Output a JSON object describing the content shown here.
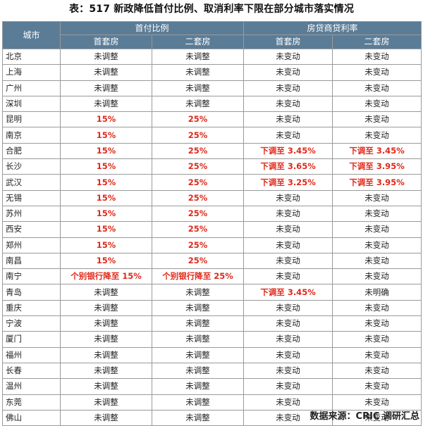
{
  "title": "表：517 新政降低首付比例、取消利率下限在部分城市落实情况",
  "header": {
    "city": "城市",
    "group1": "首付比例",
    "group2": "房贷商贷利率",
    "sub": [
      "首套房",
      "二套房",
      "首套房",
      "二套房"
    ]
  },
  "rows": [
    {
      "city": "北京",
      "cells": [
        {
          "text": "未调整"
        },
        {
          "text": "未调整"
        },
        {
          "text": "未变动"
        },
        {
          "text": "未变动"
        }
      ]
    },
    {
      "city": "上海",
      "cells": [
        {
          "text": "未调整"
        },
        {
          "text": "未调整"
        },
        {
          "text": "未变动"
        },
        {
          "text": "未变动"
        }
      ]
    },
    {
      "city": "广州",
      "cells": [
        {
          "text": "未调整"
        },
        {
          "text": "未调整"
        },
        {
          "text": "未变动"
        },
        {
          "text": "未变动"
        }
      ]
    },
    {
      "city": "深圳",
      "cells": [
        {
          "text": "未调整"
        },
        {
          "text": "未调整"
        },
        {
          "text": "未变动"
        },
        {
          "text": "未变动"
        }
      ]
    },
    {
      "city": "昆明",
      "cells": [
        {
          "text": "15%",
          "hl": true
        },
        {
          "text": "25%",
          "hl": true
        },
        {
          "text": "未变动"
        },
        {
          "text": "未变动"
        }
      ]
    },
    {
      "city": "南京",
      "cells": [
        {
          "text": "15%",
          "hl": true
        },
        {
          "text": "25%",
          "hl": true
        },
        {
          "text": "未变动"
        },
        {
          "text": "未变动"
        }
      ]
    },
    {
      "city": "合肥",
      "cells": [
        {
          "text": "15%",
          "hl": true
        },
        {
          "text": "25%",
          "hl": true
        },
        {
          "text": "下调至 3.45%",
          "hl": true
        },
        {
          "text": "下调至 3.45%",
          "hl": true
        }
      ]
    },
    {
      "city": "长沙",
      "cells": [
        {
          "text": "15%",
          "hl": true
        },
        {
          "text": "25%",
          "hl": true
        },
        {
          "text": "下调至 3.65%",
          "hl": true
        },
        {
          "text": "下调至 3.95%",
          "hl": true
        }
      ]
    },
    {
      "city": "武汉",
      "cells": [
        {
          "text": "15%",
          "hl": true
        },
        {
          "text": "25%",
          "hl": true
        },
        {
          "text": "下调至 3.25%",
          "hl": true
        },
        {
          "text": "下调至 3.95%",
          "hl": true
        }
      ]
    },
    {
      "city": "无锡",
      "cells": [
        {
          "text": "15%",
          "hl": true
        },
        {
          "text": "25%",
          "hl": true
        },
        {
          "text": "未变动"
        },
        {
          "text": "未变动"
        }
      ]
    },
    {
      "city": "苏州",
      "cells": [
        {
          "text": "15%",
          "hl": true
        },
        {
          "text": "25%",
          "hl": true
        },
        {
          "text": "未变动"
        },
        {
          "text": "未变动"
        }
      ]
    },
    {
      "city": "西安",
      "cells": [
        {
          "text": "15%",
          "hl": true
        },
        {
          "text": "25%",
          "hl": true
        },
        {
          "text": "未变动"
        },
        {
          "text": "未变动"
        }
      ]
    },
    {
      "city": "郑州",
      "cells": [
        {
          "text": "15%",
          "hl": true
        },
        {
          "text": "25%",
          "hl": true
        },
        {
          "text": "未变动"
        },
        {
          "text": "未变动"
        }
      ]
    },
    {
      "city": "南昌",
      "cells": [
        {
          "text": "15%",
          "hl": true
        },
        {
          "text": "25%",
          "hl": true
        },
        {
          "text": "未变动"
        },
        {
          "text": "未变动"
        }
      ]
    },
    {
      "city": "南宁",
      "cells": [
        {
          "text": "个别银行降至 15%",
          "hl": true
        },
        {
          "text": "个别银行降至 25%",
          "hl": true
        },
        {
          "text": "未变动"
        },
        {
          "text": "未变动"
        }
      ]
    },
    {
      "city": "青岛",
      "cells": [
        {
          "text": "未调整"
        },
        {
          "text": "未调整"
        },
        {
          "text": "下调至 3.45%",
          "hl": true
        },
        {
          "text": "未明确"
        }
      ]
    },
    {
      "city": "重庆",
      "cells": [
        {
          "text": "未调整"
        },
        {
          "text": "未调整"
        },
        {
          "text": "未变动"
        },
        {
          "text": "未变动"
        }
      ]
    },
    {
      "city": "宁波",
      "cells": [
        {
          "text": "未调整"
        },
        {
          "text": "未调整"
        },
        {
          "text": "未变动"
        },
        {
          "text": "未变动"
        }
      ]
    },
    {
      "city": "厦门",
      "cells": [
        {
          "text": "未调整"
        },
        {
          "text": "未调整"
        },
        {
          "text": "未变动"
        },
        {
          "text": "未变动"
        }
      ]
    },
    {
      "city": "福州",
      "cells": [
        {
          "text": "未调整"
        },
        {
          "text": "未调整"
        },
        {
          "text": "未变动"
        },
        {
          "text": "未变动"
        }
      ]
    },
    {
      "city": "长春",
      "cells": [
        {
          "text": "未调整"
        },
        {
          "text": "未调整"
        },
        {
          "text": "未变动"
        },
        {
          "text": "未变动"
        }
      ]
    },
    {
      "city": "温州",
      "cells": [
        {
          "text": "未调整"
        },
        {
          "text": "未调整"
        },
        {
          "text": "未变动"
        },
        {
          "text": "未变动"
        }
      ]
    },
    {
      "city": "东莞",
      "cells": [
        {
          "text": "未调整"
        },
        {
          "text": "未调整"
        },
        {
          "text": "未变动"
        },
        {
          "text": "未变动"
        }
      ]
    },
    {
      "city": "佛山",
      "cells": [
        {
          "text": "未调整"
        },
        {
          "text": "未调整"
        },
        {
          "text": "未变动"
        },
        {
          "text": "未变动"
        }
      ]
    }
  ],
  "source": "数据来源：CRIC 调研汇总",
  "colors": {
    "header_bg": "#5a7c97",
    "highlight": "#e0291a"
  }
}
